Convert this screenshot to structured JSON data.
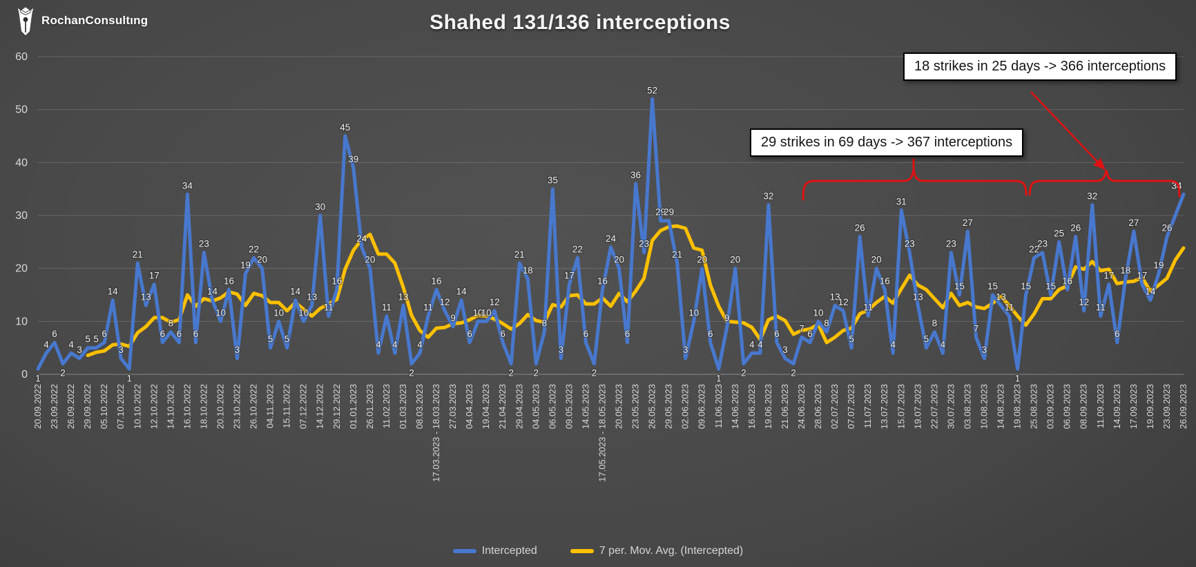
{
  "header": {
    "logo_text": "RochanConsultıng",
    "title": "Shahed 131/136 interceptions"
  },
  "chart_data": {
    "type": "line",
    "title": "Shahed 131/136 interceptions",
    "xlabel": "",
    "ylabel": "",
    "ylim": [
      0,
      60
    ],
    "y_ticks": [
      0,
      10,
      20,
      30,
      40,
      50,
      60
    ],
    "grid": true,
    "legend_position": "bottom",
    "categories": [
      "20.09.2022",
      "23.09.2022",
      "26.09.2022",
      "29.09.2022",
      "05.10.2022",
      "07.10.2022",
      "10.10.2022",
      "12.10.2022",
      "14.10.2022",
      "16.10.2022",
      "18.10.2022",
      "20.10.2022",
      "23.10.2022",
      "26.10.2022",
      "04.11.2022",
      "15.11.2022",
      "07.12.2022",
      "14.12.2022",
      "29.12.2022",
      "01.01.2023",
      "26.01.2023",
      "11.02.2023",
      "01.03.2023",
      "08.03.2023",
      "17.03.2023 - 18.03.2023",
      "27.03.2023",
      "04.04.2023",
      "19.04.2023",
      "21.04.2023",
      "29.04.2023",
      "04.05.2023",
      "06.05.2023",
      "09.05.2023",
      "14.05.2023",
      "17.05.2023 - 18.05.2023",
      "20.05.2023",
      "23.05.2023",
      "26.05.2023",
      "29.05.2023",
      "02.06.2023",
      "09.06.2023",
      "11.06.2023",
      "14.06.2023",
      "16.06.2023",
      "19.06.2023",
      "21.06.2023",
      "24.06.2023",
      "28.06.2023",
      "02.07.2023",
      "07.07.2023",
      "11.07.2023",
      "13.07.2023",
      "15.07.2023",
      "19.07.2023",
      "22.07.2023",
      "30.07.2023",
      "03.08.2023",
      "10.08.2023",
      "14.08.2023",
      "19.08.2023",
      "25.08.2023",
      "03.09.2023",
      "06.09.2023",
      "08.09.2023",
      "11.09.2023",
      "14.09.2023",
      "17.09.2023",
      "19.09.2023",
      "23.09.2023",
      "26.09.2023"
    ],
    "category_every_nth_point": 2,
    "series": [
      {
        "name": "Intercepted",
        "color": "#4878CE",
        "data_labels": true,
        "values": [
          1,
          4,
          6,
          2,
          4,
          3,
          5,
          5,
          6,
          14,
          3,
          1,
          21,
          13,
          17,
          6,
          8,
          6,
          34,
          6,
          23,
          14,
          10,
          16,
          3,
          19,
          22,
          20,
          5,
          10,
          5,
          14,
          10,
          13,
          30,
          11,
          16,
          45,
          39,
          24,
          20,
          4,
          11,
          4,
          13,
          2,
          4,
          11,
          16,
          12,
          9,
          14,
          6,
          10,
          10,
          12,
          6,
          2,
          21,
          18,
          2,
          8,
          35,
          3,
          17,
          22,
          6,
          2,
          16,
          24,
          20,
          6,
          36,
          23,
          52,
          29,
          29,
          21,
          3,
          10,
          20,
          6,
          1,
          9,
          20,
          2,
          4,
          4,
          32,
          6,
          3,
          2,
          7,
          6,
          10,
          8,
          13,
          12,
          5,
          26,
          11,
          20,
          16,
          4,
          31,
          23,
          13,
          5,
          8,
          4,
          23,
          15,
          27,
          7,
          3,
          15,
          13,
          11,
          1,
          15,
          22,
          23,
          15,
          25,
          16,
          26,
          12,
          32,
          11,
          17,
          6,
          18,
          27,
          17,
          14,
          19,
          26,
          30,
          34
        ]
      },
      {
        "name": "7 per. Mov. Avg. (Intercepted)",
        "color": "#FFC000",
        "data_labels": false,
        "moving_average_window": 7,
        "derived_from": "Intercepted"
      }
    ],
    "hidden_label_indices": [
      137
    ],
    "annotations": [
      {
        "id": "ann-29",
        "text": "29 strikes in 69 days -> 367 interceptions"
      },
      {
        "id": "ann-18",
        "text": "18 strikes in 25 days -> 366 interceptions"
      }
    ],
    "annotation_color": "#e01212"
  },
  "legend": {
    "items": [
      {
        "label": "Intercepted",
        "color": "#4878CE"
      },
      {
        "label": "7 per. Mov. Avg. (Intercepted)",
        "color": "#FFC000"
      }
    ]
  }
}
